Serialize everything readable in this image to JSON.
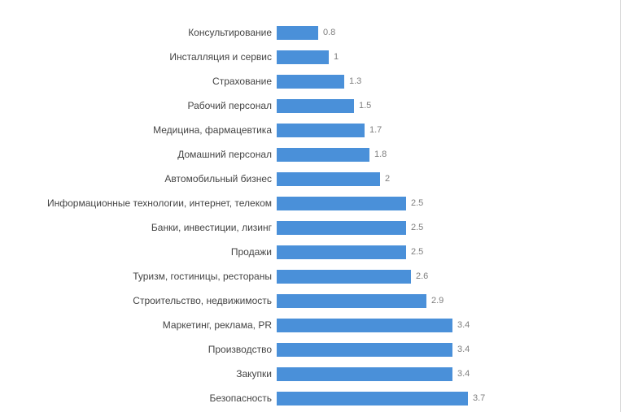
{
  "accent_color": "#4a90d9",
  "label_color": "#444444",
  "value_color": "#7f7f7f",
  "chart_data": {
    "type": "bar",
    "orientation": "horizontal",
    "title": "",
    "xlabel": "",
    "ylabel": "",
    "xlim": [
      0,
      3.7
    ],
    "grid": false,
    "legend": false,
    "categories": [
      "Консультирование",
      "Инсталляция и сервис",
      "Страхование",
      "Рабочий персонал",
      "Медицина, фармацевтика",
      "Домашний персонал",
      "Автомобильный бизнес",
      "Информационные технологии, интернет, телеком",
      "Банки, инвестиции, лизинг",
      "Продажи",
      "Туризм, гостиницы, рестораны",
      "Строительство, недвижимость",
      "Маркетинг, реклама, PR",
      "Производство",
      "Закупки",
      "Безопасность"
    ],
    "values": [
      0.8,
      1,
      1.3,
      1.5,
      1.7,
      1.8,
      2,
      2.5,
      2.5,
      2.5,
      2.6,
      2.9,
      3.4,
      3.4,
      3.4,
      3.7
    ],
    "value_labels": [
      "0.8",
      "1",
      "1.3",
      "1.5",
      "1.7",
      "1.8",
      "2",
      "2.5",
      "2.5",
      "2.5",
      "2.6",
      "2.9",
      "3.4",
      "3.4",
      "3.4",
      "3.7"
    ]
  }
}
